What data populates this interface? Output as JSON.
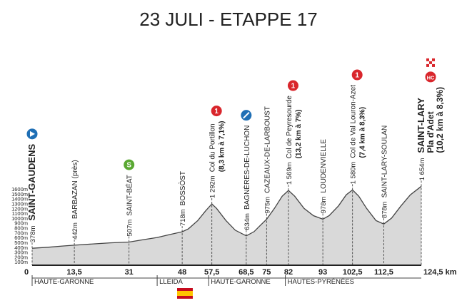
{
  "chart_data": {
    "type": "area",
    "title": "23 JULI - ETAPPE 17",
    "color": "#d9d9d9",
    "line_color": "#444444",
    "x": [
      0,
      5,
      10,
      13.5,
      20,
      25,
      31,
      36,
      40,
      44,
      48,
      50,
      53,
      55.5,
      57.5,
      59,
      62,
      65,
      68.5,
      71,
      73,
      75,
      77.5,
      80,
      82,
      84,
      87,
      90,
      93,
      95,
      98,
      100.5,
      102.5,
      104.5,
      107,
      110,
      112.5,
      115,
      118,
      121,
      124.5
    ],
    "values": [
      378,
      400,
      425,
      442,
      470,
      490,
      507,
      560,
      600,
      660,
      718,
      780,
      950,
      1150,
      1292,
      1200,
      950,
      750,
      634,
      720,
      850,
      975,
      1200,
      1450,
      1569,
      1450,
      1200,
      1050,
      978,
      1050,
      1250,
      1480,
      1580,
      1450,
      1200,
      950,
      878,
      1000,
      1250,
      1480,
      1654
    ],
    "xlim": [
      0,
      124.5
    ],
    "ylim": [
      0,
      1600
    ],
    "xticks": [
      0,
      {
        "value": 13.5,
        "label": "13,5"
      },
      31,
      48,
      {
        "value": 57.5,
        "label": "57,5"
      },
      {
        "value": 68.5,
        "label": "68,5"
      },
      75,
      82,
      93,
      {
        "value": 102.5,
        "label": "102,5"
      },
      {
        "value": 112.5,
        "label": "112,5"
      },
      {
        "value": 124.5,
        "label": "124,5 km"
      }
    ],
    "yticks": [
      {
        "value": 100,
        "label": "100m"
      },
      {
        "value": 200,
        "label": "200m"
      },
      {
        "value": 300,
        "label": "300m"
      },
      {
        "value": 400,
        "label": "400m"
      },
      {
        "value": 500,
        "label": "500m"
      },
      {
        "value": 600,
        "label": "600m"
      },
      {
        "value": 700,
        "label": "700m"
      },
      {
        "value": 800,
        "label": "800m"
      },
      {
        "value": 900,
        "label": "900m"
      },
      {
        "value": 1000,
        "label": "1000m"
      },
      {
        "value": 1100,
        "label": "1100m"
      },
      {
        "value": 1200,
        "label": "1200m"
      },
      {
        "value": 1300,
        "label": "1300m"
      },
      {
        "value": 1400,
        "label": "1400m"
      },
      {
        "value": 1500,
        "label": "1500m"
      },
      {
        "value": 1600,
        "label": "1600m"
      }
    ],
    "annotations": [
      {
        "x": 0,
        "elevation": "378m",
        "name": "SAINT-GAUDENS",
        "bold": true,
        "badge_color": "#1f6fb5",
        "badge_symbol": "play"
      },
      {
        "x": 13.5,
        "elevation": "442m",
        "name": "BARBAZAN (près)"
      },
      {
        "x": 31,
        "elevation": "507m",
        "name": "SAINT-BÉAT",
        "badge": "S",
        "badge_color": "#5aa832"
      },
      {
        "x": 48,
        "elevation": "718m",
        "name": "BOSSÒST"
      },
      {
        "x": 57.5,
        "elevation": "1 292m",
        "name": "Col du Portillon",
        "detail": "(8,3 km à 7,1%)",
        "badge": "1",
        "badge_color": "#d9262c"
      },
      {
        "x": 68.5,
        "elevation": "634m",
        "name": "BAGNÈRES-DE-LUCHON",
        "badge_color": "#1f6fb5",
        "badge_symbol": "slash"
      },
      {
        "x": 75,
        "elevation": "975m",
        "name": "CAZEAUX-DE-LARBOUST"
      },
      {
        "x": 82,
        "elevation": "1 569m",
        "name": "Col de Peyresourde",
        "detail": "(13,2 km à 7%)",
        "badge": "1",
        "badge_color": "#d9262c"
      },
      {
        "x": 93,
        "elevation": "978m",
        "name": "LOUDENVIELLE"
      },
      {
        "x": 102.5,
        "elevation": "1 580m",
        "name": "Col de Val Louron-Azet",
        "detail": "(7,4 km à 8,3%)",
        "badge": "1",
        "badge_color": "#d9262c"
      },
      {
        "x": 112.5,
        "elevation": "878m",
        "name": "SAINT-LARY-SOULAN"
      },
      {
        "x": 124.5,
        "elevation": "1 654m",
        "name": "SAINT-LARY",
        "subname": "Pla d'Adet",
        "detail": "(10,2 km à 8,3%)",
        "bold": true,
        "badge": "HC",
        "badge_color": "#d9262c"
      }
    ],
    "regions": [
      {
        "from": 0,
        "name": "HAUTE-GARONNE"
      },
      {
        "from": 40,
        "name": "LLEIDA"
      },
      {
        "from": 56.5,
        "name": "HAUTE-GARONNE"
      },
      {
        "from": 81,
        "name": "HAUTES-PYRÉNÉES"
      }
    ]
  }
}
